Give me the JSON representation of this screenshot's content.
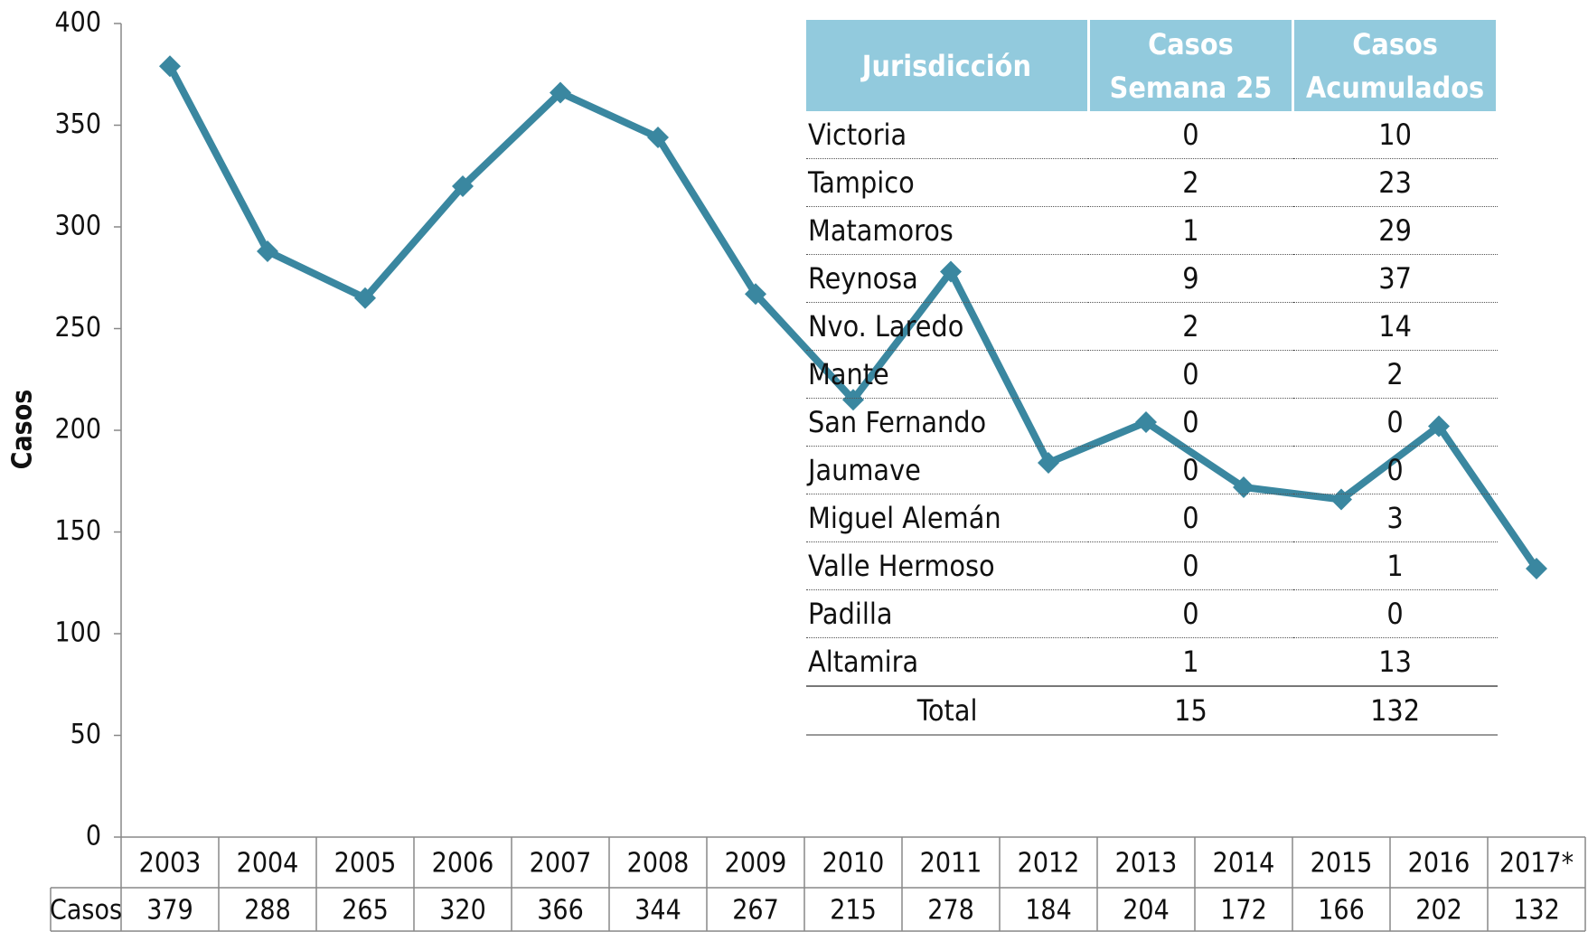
{
  "chart_data": {
    "type": "line",
    "ylabel": "Casos",
    "categories": [
      "2003",
      "2004",
      "2005",
      "2006",
      "2007",
      "2008",
      "2009",
      "2010",
      "2011",
      "2012",
      "2013",
      "2014",
      "2015",
      "2016",
      "2017*"
    ],
    "series": [
      {
        "name": "Casos",
        "color": "#3a87a0",
        "values": [
          379,
          288,
          265,
          320,
          366,
          344,
          267,
          215,
          278,
          184,
          204,
          172,
          166,
          202,
          132
        ]
      }
    ],
    "ylim": [
      0,
      400
    ],
    "yticks": [
      0,
      50,
      100,
      150,
      200,
      250,
      300,
      350,
      400
    ],
    "grid": false
  },
  "table": {
    "header": [
      "Jurisdicción",
      "Casos Semana 25",
      "Casos Acumulados"
    ],
    "rows": [
      [
        "Victoria",
        0,
        10
      ],
      [
        "Tampico",
        2,
        23
      ],
      [
        "Matamoros",
        1,
        29
      ],
      [
        "Reynosa",
        9,
        37
      ],
      [
        "Nvo. Laredo",
        2,
        14
      ],
      [
        "Mante",
        0,
        2
      ],
      [
        "San Fernando",
        0,
        0
      ],
      [
        "Jaumave",
        0,
        0
      ],
      [
        "Miguel Alemán",
        0,
        3
      ],
      [
        "Valle Hermoso",
        0,
        1
      ],
      [
        "Padilla",
        0,
        0
      ],
      [
        "Altamira",
        1,
        13
      ]
    ],
    "total": [
      "Total",
      15,
      132
    ]
  }
}
